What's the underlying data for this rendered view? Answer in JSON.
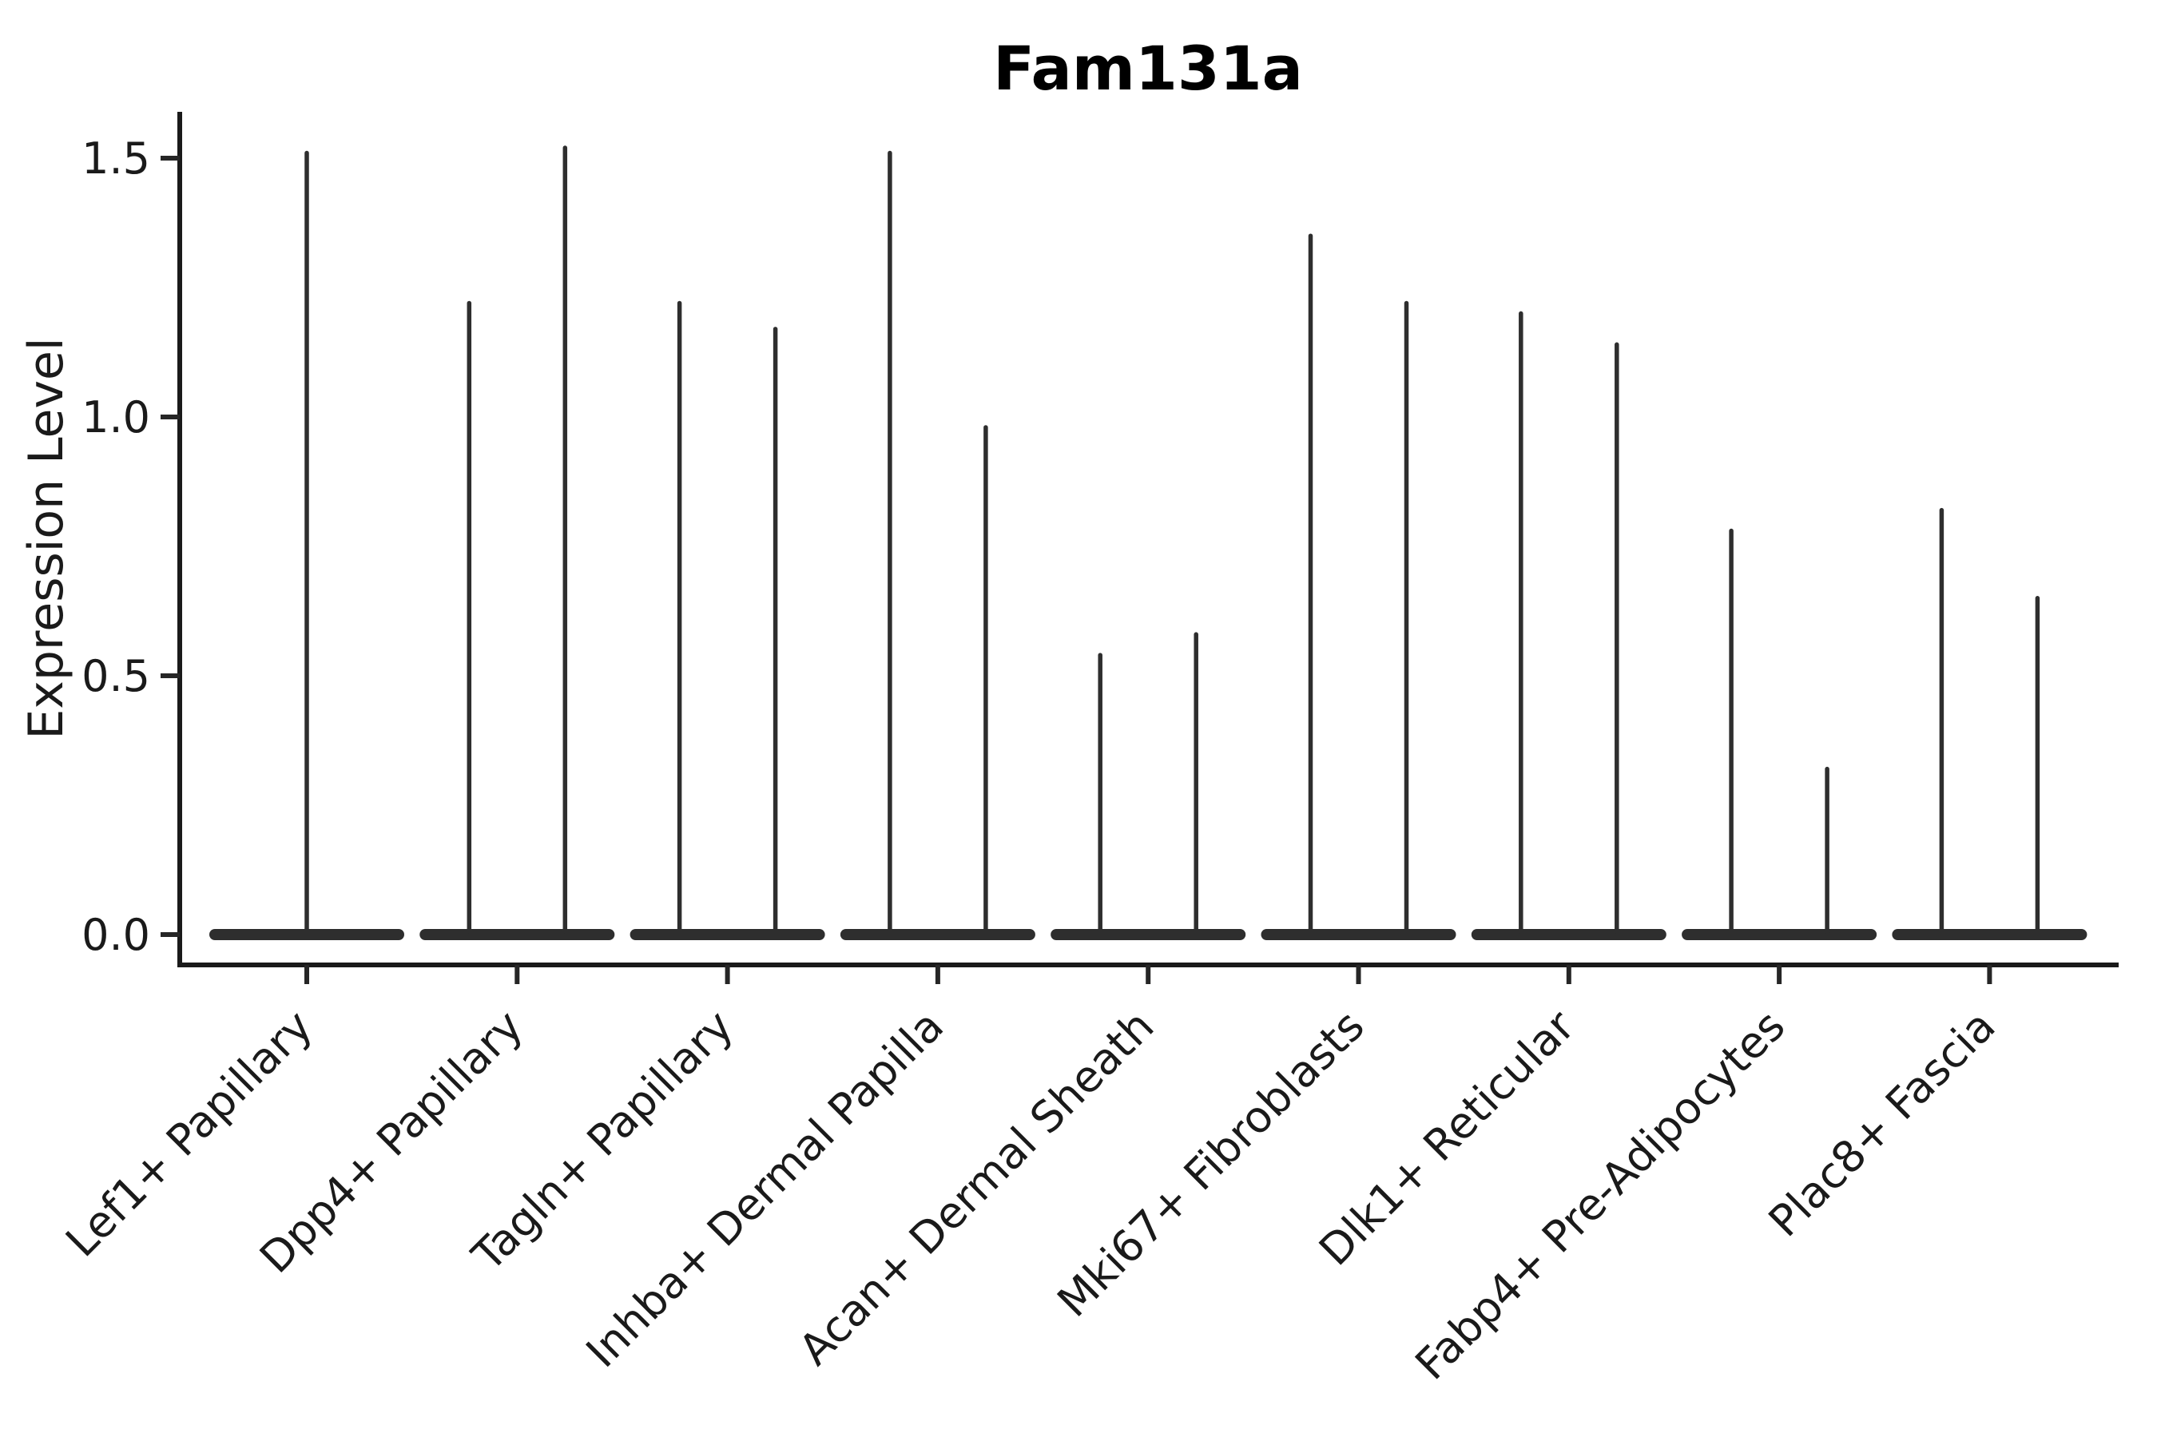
{
  "figure": {
    "background_color": "#ffffff",
    "ink_color": "#262626",
    "violin_color": "#2e2e2e",
    "title_color": "#000000"
  },
  "chart_data": {
    "type": "violin",
    "title": "Fam131a",
    "xlabel": "",
    "ylabel": "Expression Level",
    "ylim": [
      0,
      1.55
    ],
    "yticks": [
      0.0,
      0.5,
      1.0,
      1.5
    ],
    "ytick_labels": [
      "0.0",
      "0.5",
      "1.0",
      "1.5"
    ],
    "grid": false,
    "legend_position": "none",
    "x_tick_rotation_deg": 45,
    "categories": [
      "Lef1+ Papillary",
      "Dpp4+ Papillary",
      "Tagln+ Papillary",
      "Inhba+ Dermal Papilla",
      "Acan+ Dermal Sheath",
      "Mki67+ Fibroblasts",
      "Dlk1+ Reticular",
      "Fabp4+ Pre-Adipocytes",
      "Plac8+ Fascia"
    ],
    "series_description": "Each category shows needle-shaped violin(s): a wide flat density bar at expression 0 with thin spike(s) reaching the maximum expression value.",
    "violins": [
      {
        "category": "Lef1+ Papillary",
        "spike_max_values": [
          1.51
        ]
      },
      {
        "category": "Dpp4+ Papillary",
        "spike_max_values": [
          1.22,
          1.52
        ]
      },
      {
        "category": "Tagln+ Papillary",
        "spike_max_values": [
          1.22,
          1.17
        ]
      },
      {
        "category": "Inhba+ Dermal Papilla",
        "spike_max_values": [
          1.51,
          0.98
        ]
      },
      {
        "category": "Acan+ Dermal Sheath",
        "spike_max_values": [
          0.54,
          0.58
        ]
      },
      {
        "category": "Mki67+ Fibroblasts",
        "spike_max_values": [
          1.35,
          1.22
        ]
      },
      {
        "category": "Dlk1+ Reticular",
        "spike_max_values": [
          1.2,
          1.14
        ]
      },
      {
        "category": "Fabp4+ Pre-Adipocytes",
        "spike_max_values": [
          0.78,
          0.32
        ]
      },
      {
        "category": "Plac8+ Fascia",
        "spike_max_values": [
          0.82,
          0.65
        ]
      }
    ],
    "baseline_value": 0.0
  }
}
